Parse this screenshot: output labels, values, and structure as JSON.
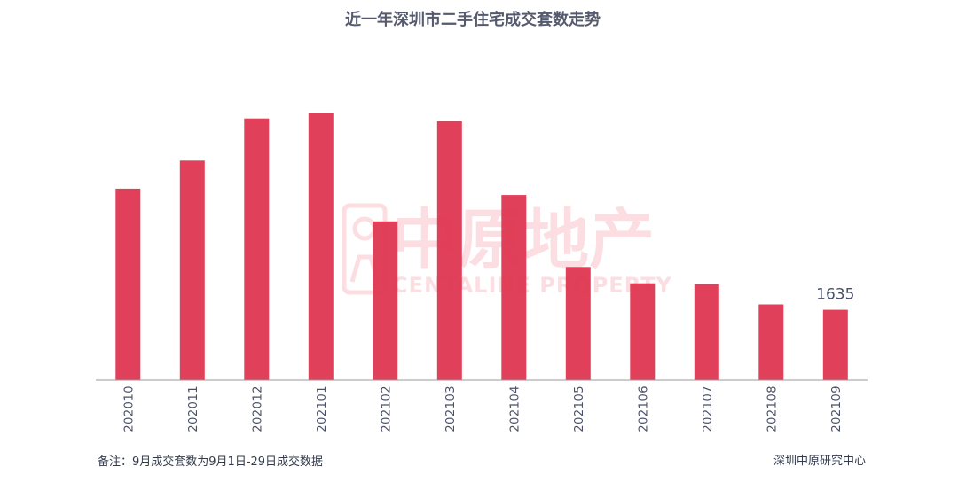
{
  "chart_data": {
    "type": "bar",
    "title": "近一年深圳市二手住宅成交套数走势",
    "categories": [
      "202010",
      "202011",
      "202012",
      "202101",
      "202102",
      "202103",
      "202104",
      "202105",
      "202106",
      "202107",
      "202108",
      "202109"
    ],
    "values": [
      4450,
      5100,
      6080,
      6200,
      3690,
      6020,
      4300,
      2630,
      2250,
      2230,
      1760,
      1635
    ],
    "data_labels": [
      {
        "index": 11,
        "text": "1635"
      }
    ],
    "ylim": [
      0,
      7000
    ],
    "grid": false,
    "xlabel": "",
    "ylabel": "",
    "bar_color": "#e0405a",
    "axis_color": "#999999"
  },
  "footer": {
    "note": "备注：9月成交套数为9月1日-29日成交数据",
    "source": "深圳中原研究中心"
  },
  "watermark": {
    "cn": "中原地产",
    "en": "CENTALINE PROPERTY"
  }
}
